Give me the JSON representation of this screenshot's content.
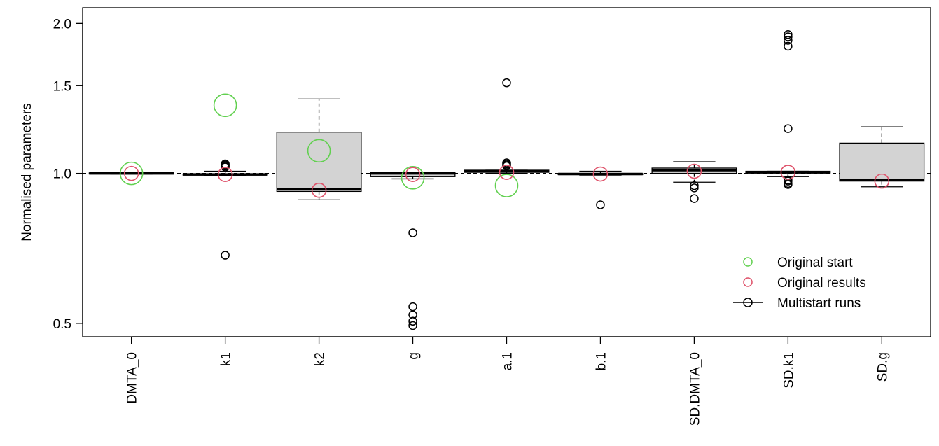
{
  "chart_data": {
    "type": "box",
    "title": "",
    "xlabel": "",
    "ylabel": "Normalised parameters",
    "y_scale": "log",
    "ylim": [
      0.47,
      2.15
    ],
    "yticks": [
      0.5,
      1.0,
      1.5,
      2.0
    ],
    "ytick_labels": [
      "0.5",
      "1.0",
      "1.5",
      "2.0"
    ],
    "reference_line": 1.0,
    "grid": false,
    "legend_position": "bottom-right",
    "colors": {
      "box_fill": "#d3d3d3",
      "box_stroke": "#000000",
      "start": "#61d04f",
      "result": "#df536b",
      "runs": "#000000"
    },
    "legend": [
      {
        "label": "Original start",
        "marker": "circle",
        "color": "#61d04f"
      },
      {
        "label": "Original results",
        "marker": "circle",
        "color": "#df536b"
      },
      {
        "label": "Multistart runs",
        "marker": "line-circle",
        "color": "#000000"
      }
    ],
    "categories": [
      "DMTA_0",
      "k1",
      "k2",
      "g",
      "a.1",
      "b.1",
      "SD.DMTA_0",
      "SD.k1",
      "SD.g"
    ],
    "boxes": [
      {
        "name": "DMTA_0",
        "whisker_low": 0.997,
        "q1": 0.998,
        "median": 1.0,
        "q3": 1.002,
        "whisker_high": 1.003,
        "outliers": [],
        "original_start": 1.0,
        "original_result": 1.0
      },
      {
        "name": "k1",
        "whisker_low": 0.99,
        "q1": 0.993,
        "median": 0.995,
        "q3": 0.997,
        "whisker_high": 1.01,
        "outliers": [
          0.685,
          1.03,
          1.035,
          1.04,
          1.045
        ],
        "original_start": 1.37,
        "original_result": 0.995
      },
      {
        "name": "k2",
        "whisker_low": 0.885,
        "q1": 0.92,
        "median": 0.93,
        "q3": 1.21,
        "whisker_high": 1.41,
        "outliers": [],
        "original_start": 1.11,
        "original_result": 0.925
      },
      {
        "name": "g",
        "whisker_low": 0.975,
        "q1": 0.985,
        "median": 1.0,
        "q3": 1.005,
        "whisker_high": 1.005,
        "outliers": [
          0.76,
          0.54,
          0.52,
          0.505,
          0.495
        ],
        "original_start": 0.98,
        "original_result": 0.995
      },
      {
        "name": "a.1",
        "whisker_low": 1.0,
        "q1": 1.005,
        "median": 1.01,
        "q3": 1.015,
        "whisker_high": 1.015,
        "outliers": [
          1.52,
          1.05,
          1.045,
          1.04,
          1.035
        ],
        "original_start": 0.945,
        "original_result": 1.005
      },
      {
        "name": "b.1",
        "whisker_low": 0.992,
        "q1": 0.995,
        "median": 0.997,
        "q3": 0.999,
        "whisker_high": 1.01,
        "outliers": [
          0.865
        ],
        "original_start": null,
        "original_result": 0.997
      },
      {
        "name": "SD.DMTA_0",
        "whisker_low": 0.96,
        "q1": 1.0,
        "median": 1.015,
        "q3": 1.025,
        "whisker_high": 1.055,
        "outliers": [
          0.945,
          0.935,
          0.89
        ],
        "original_start": null,
        "original_result": 1.01
      },
      {
        "name": "SD.k1",
        "whisker_low": 0.985,
        "q1": 1.002,
        "median": 1.005,
        "q3": 1.01,
        "whisker_high": 1.01,
        "outliers": [
          1.9,
          1.88,
          1.85,
          1.8,
          1.23,
          0.97,
          0.965,
          0.955,
          0.95
        ],
        "original_start": null,
        "original_result": 1.005
      },
      {
        "name": "SD.g",
        "whisker_low": 0.94,
        "q1": 0.965,
        "median": 0.97,
        "q3": 1.15,
        "whisker_high": 1.24,
        "outliers": [],
        "original_start": null,
        "original_result": 0.965
      }
    ]
  }
}
